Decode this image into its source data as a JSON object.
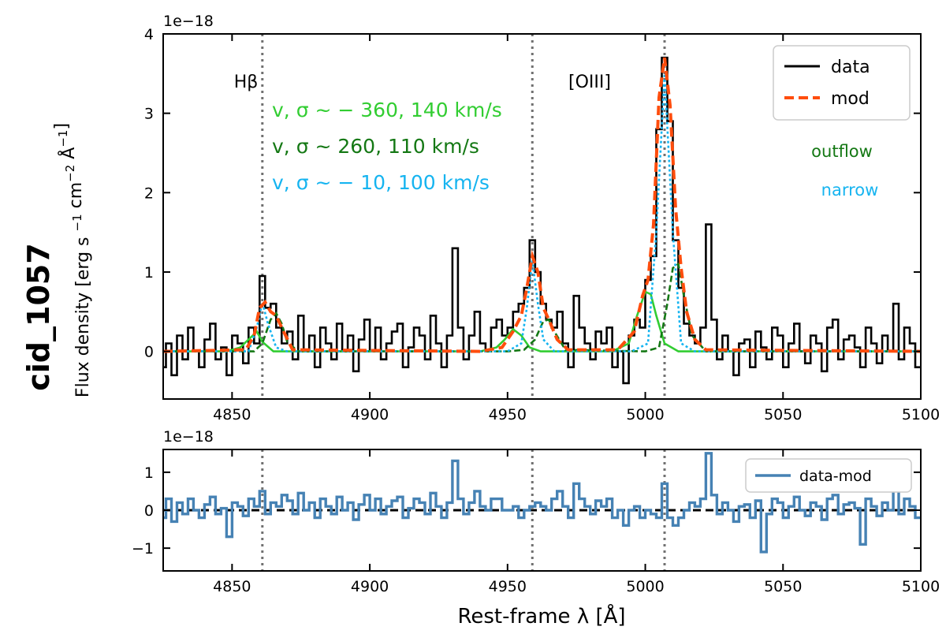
{
  "figure": {
    "object_label": "cid_1057",
    "ylabel": "Flux density [erg s $^{-1}$ cm$^{-2}$ Å$^{-1}$]",
    "xlabel": "Rest-frame λ [Å]",
    "colors": {
      "data": "#000000",
      "model": "#ff4d0d",
      "outflow": "#147814",
      "narrow": "#16b4f0",
      "blue_component": "#32cd32",
      "residual": "#4682b4",
      "vline": "#707070"
    }
  },
  "chart_data": [
    {
      "type": "line",
      "panel": "top",
      "xlim": [
        4825,
        5100
      ],
      "ylim": [
        -0.6,
        4.0
      ],
      "y_scale_label": "1e−18",
      "x_ticks": [
        4850,
        4900,
        4950,
        5000,
        5050,
        5100
      ],
      "y_ticks": [
        0,
        1,
        2,
        3,
        4
      ],
      "grid": false,
      "legend_position": "top-right",
      "line_labels": [
        {
          "text": "Hβ",
          "x": 4861
        },
        {
          "text": "[OIII]",
          "x": 5007
        }
      ],
      "vlines": [
        4861,
        4959,
        5007
      ],
      "annotations": [
        {
          "text": "v, σ ~ − 360, 140 km/s",
          "color": "blue_component"
        },
        {
          "text": "v, σ ~ 260, 110 km/s",
          "color": "outflow"
        },
        {
          "text": "v, σ ~ − 10, 100 km/s",
          "color": "narrow"
        }
      ],
      "side_labels": [
        "outflow",
        "narrow"
      ],
      "series": [
        {
          "name": "data",
          "style": "steps",
          "x": [
            4825,
            4827,
            4829,
            4831,
            4833,
            4835,
            4837,
            4839,
            4841,
            4843,
            4845,
            4847,
            4849,
            4851,
            4853,
            4855,
            4857,
            4859,
            4861,
            4863,
            4865,
            4867,
            4869,
            4871,
            4873,
            4875,
            4877,
            4879,
            4881,
            4883,
            4885,
            4887,
            4889,
            4891,
            4893,
            4895,
            4897,
            4899,
            4901,
            4903,
            4905,
            4907,
            4909,
            4911,
            4913,
            4915,
            4917,
            4919,
            4921,
            4923,
            4925,
            4927,
            4929,
            4931,
            4933,
            4935,
            4937,
            4939,
            4941,
            4943,
            4945,
            4947,
            4949,
            4951,
            4953,
            4955,
            4957,
            4959,
            4961,
            4963,
            4965,
            4967,
            4969,
            4971,
            4973,
            4975,
            4977,
            4979,
            4981,
            4983,
            4985,
            4987,
            4989,
            4991,
            4993,
            4995,
            4997,
            4999,
            5001,
            5003,
            5005,
            5007,
            5009,
            5011,
            5013,
            5015,
            5017,
            5019,
            5021,
            5023,
            5025,
            5027,
            5029,
            5031,
            5033,
            5035,
            5037,
            5039,
            5041,
            5043,
            5045,
            5047,
            5049,
            5051,
            5053,
            5055,
            5057,
            5059,
            5061,
            5063,
            5065,
            5067,
            5069,
            5071,
            5073,
            5075,
            5077,
            5079,
            5081,
            5083,
            5085,
            5087,
            5089,
            5091,
            5093,
            5095,
            5097,
            5099
          ],
          "y": [
            -0.2,
            0.1,
            -0.3,
            0.2,
            -0.1,
            0.3,
            0.0,
            -0.2,
            0.15,
            0.35,
            -0.1,
            0.05,
            -0.3,
            0.2,
            0.1,
            -0.15,
            0.3,
            0.1,
            0.95,
            0.55,
            0.6,
            0.3,
            0.1,
            0.25,
            -0.1,
            0.45,
            0.0,
            0.2,
            -0.2,
            0.3,
            0.1,
            -0.1,
            0.35,
            0.0,
            0.2,
            -0.25,
            0.15,
            0.4,
            0.0,
            0.3,
            -0.1,
            0.1,
            0.25,
            0.35,
            -0.2,
            0.05,
            0.3,
            0.2,
            -0.1,
            0.45,
            0.1,
            -0.2,
            0.2,
            1.3,
            0.3,
            -0.1,
            0.2,
            0.5,
            0.1,
            0.0,
            0.3,
            0.4,
            0.2,
            0.3,
            0.5,
            0.6,
            0.8,
            1.4,
            1.0,
            0.6,
            0.4,
            0.3,
            0.5,
            0.1,
            -0.2,
            0.7,
            0.3,
            0.1,
            -0.1,
            0.25,
            0.1,
            0.3,
            -0.2,
            0.0,
            -0.4,
            0.2,
            0.4,
            0.3,
            0.9,
            1.2,
            2.8,
            3.7,
            2.9,
            1.4,
            0.8,
            0.35,
            0.2,
            0.1,
            0.3,
            1.6,
            0.4,
            -0.1,
            0.2,
            0.0,
            -0.3,
            0.1,
            0.15,
            -0.2,
            0.25,
            0.05,
            -0.1,
            0.3,
            0.2,
            -0.2,
            0.1,
            0.35,
            0.0,
            -0.15,
            0.2,
            0.1,
            -0.25,
            0.3,
            0.4,
            -0.1,
            0.15,
            0.2,
            0.05,
            -0.2,
            0.3,
            0.1,
            -0.15,
            0.2,
            0.0,
            0.6,
            -0.1,
            0.3,
            0.1,
            -0.2
          ]
        },
        {
          "name": "mod",
          "style": "dashed",
          "x": [
            4825,
            4855,
            4858,
            4860,
            4862,
            4864,
            4866,
            4868,
            4872,
            4940,
            4948,
            4952,
            4955,
            4957,
            4959,
            4961,
            4963,
            4965,
            4968,
            4972,
            4990,
            4996,
            4999,
            5001,
            5003,
            5005,
            5007,
            5009,
            5011,
            5013,
            5015,
            5018,
            5022,
            5100
          ],
          "y": [
            0,
            0.02,
            0.2,
            0.55,
            0.62,
            0.5,
            0.45,
            0.3,
            0.02,
            0.0,
            0.05,
            0.25,
            0.45,
            0.8,
            1.2,
            1.0,
            0.55,
            0.4,
            0.15,
            0.02,
            0.02,
            0.25,
            0.7,
            0.9,
            1.6,
            3.2,
            3.7,
            3.1,
            1.8,
            1.05,
            0.5,
            0.15,
            0.02,
            0
          ]
        },
        {
          "name": "outflow",
          "style": "solid",
          "x": [
            4825,
            4858,
            4861,
            4864,
            4866,
            4868,
            4870,
            4874,
            4950,
            4956,
            4960,
            4963,
            4965,
            4967,
            4971,
            5000,
            5005,
            5008,
            5010,
            5012,
            5014,
            5017,
            5022,
            5100
          ],
          "y": [
            0,
            0,
            0.1,
            0.4,
            0.48,
            0.35,
            0.12,
            0,
            0,
            0.02,
            0.15,
            0.38,
            0.4,
            0.25,
            0.02,
            0,
            0.05,
            0.6,
            1.05,
            1.1,
            0.7,
            0.2,
            0,
            0
          ]
        },
        {
          "name": "narrow",
          "style": "dotted",
          "x": [
            4825,
            4856,
            4859,
            4861,
            4863,
            4866,
            4870,
            4950,
            4955,
            4957,
            4959,
            4961,
            4963,
            4967,
            4995,
            5001,
            5004,
            5007,
            5010,
            5013,
            5018,
            5100
          ],
          "y": [
            0,
            0,
            0.3,
            0.62,
            0.35,
            0.05,
            0,
            0,
            0.1,
            0.55,
            1.15,
            0.6,
            0.15,
            0,
            0,
            0.1,
            1.5,
            3.5,
            1.5,
            0.1,
            0,
            0
          ]
        },
        {
          "name": "blue_component",
          "style": "solid",
          "x": [
            4825,
            4848,
            4853,
            4856,
            4859,
            4861,
            4865,
            4940,
            4946,
            4949,
            4952,
            4955,
            4958,
            4962,
            4988,
            4994,
            4997,
            5000,
            5002,
            5004,
            5007,
            5012,
            5100
          ],
          "y": [
            0,
            0,
            0.05,
            0.15,
            0.25,
            0.12,
            0,
            0,
            0.05,
            0.15,
            0.28,
            0.2,
            0.05,
            0,
            0,
            0.1,
            0.45,
            0.75,
            0.72,
            0.45,
            0.1,
            0,
            0
          ]
        }
      ]
    },
    {
      "type": "line",
      "panel": "bottom",
      "xlim": [
        4825,
        5100
      ],
      "ylim": [
        -1.6,
        1.6
      ],
      "y_scale_label": "1e−18",
      "x_ticks": [
        4850,
        4900,
        4950,
        5000,
        5050,
        5100
      ],
      "y_ticks": [
        -1,
        0,
        1
      ],
      "grid": false,
      "legend_position": "top-right",
      "vlines": [
        4861,
        4959,
        5007
      ],
      "hline": 0,
      "series": [
        {
          "name": "data-mod",
          "style": "steps",
          "x": [
            4825,
            4827,
            4829,
            4831,
            4833,
            4835,
            4837,
            4839,
            4841,
            4843,
            4845,
            4847,
            4849,
            4851,
            4853,
            4855,
            4857,
            4859,
            4861,
            4863,
            4865,
            4867,
            4869,
            4871,
            4873,
            4875,
            4877,
            4879,
            4881,
            4883,
            4885,
            4887,
            4889,
            4891,
            4893,
            4895,
            4897,
            4899,
            4901,
            4903,
            4905,
            4907,
            4909,
            4911,
            4913,
            4915,
            4917,
            4919,
            4921,
            4923,
            4925,
            4927,
            4929,
            4931,
            4933,
            4935,
            4937,
            4939,
            4941,
            4943,
            4945,
            4947,
            4949,
            4951,
            4953,
            4955,
            4957,
            4959,
            4961,
            4963,
            4965,
            4967,
            4969,
            4971,
            4973,
            4975,
            4977,
            4979,
            4981,
            4983,
            4985,
            4987,
            4989,
            4991,
            4993,
            4995,
            4997,
            4999,
            5001,
            5003,
            5005,
            5007,
            5009,
            5011,
            5013,
            5015,
            5017,
            5019,
            5021,
            5023,
            5025,
            5027,
            5029,
            5031,
            5033,
            5035,
            5037,
            5039,
            5041,
            5043,
            5045,
            5047,
            5049,
            5051,
            5053,
            5055,
            5057,
            5059,
            5061,
            5063,
            5065,
            5067,
            5069,
            5071,
            5073,
            5075,
            5077,
            5079,
            5081,
            5083,
            5085,
            5087,
            5089,
            5091,
            5093,
            5095,
            5097,
            5099
          ],
          "y": [
            -0.2,
            0.3,
            -0.3,
            0.2,
            -0.1,
            0.3,
            0.0,
            -0.2,
            0.15,
            0.35,
            -0.1,
            0.05,
            -0.7,
            0.2,
            0.1,
            -0.15,
            0.3,
            0.1,
            0.5,
            -0.1,
            0.2,
            0.1,
            0.4,
            0.25,
            -0.1,
            0.45,
            0.0,
            0.2,
            -0.2,
            0.3,
            0.1,
            -0.1,
            0.35,
            0.0,
            0.2,
            -0.25,
            0.15,
            0.4,
            0.0,
            0.3,
            -0.1,
            0.1,
            0.25,
            0.35,
            -0.2,
            0.05,
            0.3,
            0.2,
            -0.1,
            0.45,
            0.1,
            -0.2,
            0.2,
            1.3,
            0.3,
            -0.1,
            0.2,
            0.5,
            0.1,
            0.0,
            0.3,
            0.3,
            0.0,
            0.0,
            0.1,
            -0.2,
            0.0,
            0.1,
            0.2,
            0.1,
            0.0,
            0.3,
            0.5,
            0.1,
            -0.2,
            0.7,
            0.3,
            0.1,
            -0.1,
            0.25,
            0.1,
            0.3,
            -0.2,
            0.0,
            -0.4,
            0.0,
            0.1,
            -0.2,
            0.0,
            -0.1,
            -0.2,
            0.7,
            -0.2,
            -0.4,
            -0.2,
            0.0,
            0.2,
            0.1,
            0.3,
            1.5,
            0.4,
            -0.1,
            0.2,
            0.0,
            -0.3,
            0.1,
            0.15,
            -0.2,
            0.25,
            -1.1,
            -0.1,
            0.3,
            0.2,
            -0.2,
            0.1,
            0.35,
            0.0,
            -0.15,
            0.2,
            0.1,
            -0.25,
            0.3,
            0.4,
            -0.1,
            0.15,
            0.2,
            0.05,
            -0.9,
            0.3,
            0.1,
            -0.15,
            0.2,
            0.0,
            0.9,
            -0.1,
            0.3,
            0.1,
            -0.2
          ]
        }
      ]
    }
  ]
}
